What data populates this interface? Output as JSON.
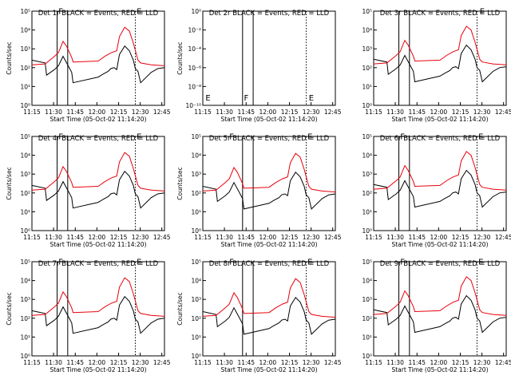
{
  "colors": {
    "events": "#000000",
    "lld": "#e8000b",
    "axis": "#000000"
  },
  "common": {
    "xlabel": "Start Time (05-Oct-02 11:14:20)",
    "ylabel": "Counts/sec",
    "xticks": [
      "11:15",
      "11:30",
      "11:45",
      "12:00",
      "12:15",
      "12:30",
      "12:45"
    ],
    "yticks": [
      "10⁰",
      "10¹",
      "10²",
      "10³",
      "10⁴",
      "10⁵"
    ],
    "yticks_det2": [
      "10⁻¹⁰",
      "10⁻⁸",
      "10⁻⁶",
      "10⁻⁴",
      "10⁻²",
      "10⁰"
    ]
  },
  "chart_data": [
    {
      "type": "line",
      "title": "Det 1r BLACK = Events, RED = LLD",
      "flags": [
        "F",
        "E"
      ],
      "has_data": true
    },
    {
      "type": "line",
      "title": "Det 2r BLACK = Events, RED = LLD",
      "flags": [
        "E",
        "F",
        "E"
      ],
      "has_data": false
    },
    {
      "type": "line",
      "title": "Det 3r BLACK = Events, RED = LLD",
      "flags": [
        "E"
      ],
      "has_data": true
    },
    {
      "type": "line",
      "title": "Det 4r BLACK = Events, RED = LLD",
      "flags": [
        "F",
        "E"
      ],
      "has_data": true
    },
    {
      "type": "line",
      "title": "Det 5r BLACK = Events, RED = LLD",
      "flags": [
        "F",
        "E"
      ],
      "has_data": true
    },
    {
      "type": "line",
      "title": "Det 6r BLACK = Events, RED = LLD",
      "flags": [
        "F",
        "E"
      ],
      "has_data": true
    },
    {
      "type": "line",
      "title": "Det 7r BLACK = Events, RED = LLD",
      "flags": [
        "F",
        "E"
      ],
      "has_data": true
    },
    {
      "type": "line",
      "title": "Det 8r BLACK = Events, RED = LLD",
      "flags": [
        "F",
        "E"
      ],
      "has_data": true
    },
    {
      "type": "line",
      "title": "Det 9r BLACK = Events, RED = LLD",
      "flags": [
        "F",
        "E"
      ],
      "has_data": true
    }
  ]
}
